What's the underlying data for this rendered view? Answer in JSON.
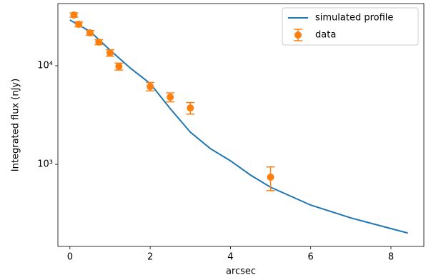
{
  "chart_data": {
    "type": "line",
    "xlabel": "arcsec",
    "ylabel": "Integrated flux (nJy)",
    "xlim": [
      -0.3,
      8.82
    ],
    "xticks": [
      0,
      2,
      4,
      6,
      8
    ],
    "ylim": [
      147,
      42700
    ],
    "yscale": "log",
    "yticks": [
      {
        "value": 1000,
        "label": "10³"
      },
      {
        "value": 10000,
        "label": "10⁴"
      }
    ],
    "legend": "upper right",
    "series": [
      {
        "name": "simulated profile",
        "color": "#1f77b4",
        "type": "line",
        "x": [
          0,
          0.5,
          1,
          1.5,
          2,
          2.5,
          3,
          3.5,
          4,
          4.5,
          5,
          6,
          7,
          8,
          8.42
        ],
        "values": [
          29100,
          22300,
          14400,
          9500,
          6600,
          3670,
          2120,
          1443,
          1086,
          778,
          586,
          386,
          286,
          223,
          201
        ]
      },
      {
        "name": "data",
        "color": "#ff7f0e",
        "type": "errorbar",
        "x": [
          0.1,
          0.22,
          0.5,
          0.72,
          1.0,
          1.22,
          2.0,
          2.5,
          3.0,
          5.0
        ],
        "values": [
          32700,
          26300,
          21550,
          17350,
          13500,
          9840,
          6160,
          4800,
          3730,
          741
        ],
        "errors": [
          1600,
          1500,
          1200,
          1000,
          1000,
          800,
          600,
          500,
          500,
          200
        ]
      }
    ]
  }
}
